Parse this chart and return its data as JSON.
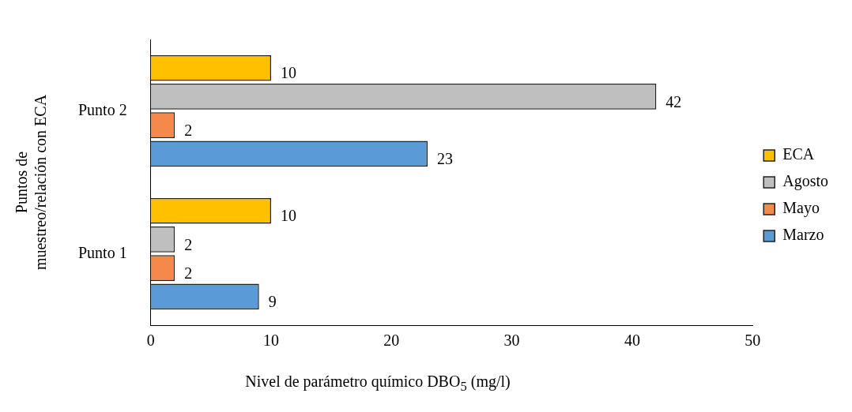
{
  "chart_data": {
    "type": "bar",
    "orientation": "horizontal",
    "xlabel": "Nivel de parámetro químico DBO$_{5}$ (mg/l)",
    "ylabel": "Puntos de muestreo/relación con ECA",
    "categories": [
      "Punto 2",
      "Punto 1"
    ],
    "series": [
      {
        "name": "ECA",
        "color": "#ffc000",
        "values": [
          10,
          10
        ]
      },
      {
        "name": "Agosto",
        "color": "#bfbfbf",
        "values": [
          42,
          2
        ]
      },
      {
        "name": "Mayo",
        "color": "#f4894b",
        "values": [
          2,
          2
        ]
      },
      {
        "name": "Marzo",
        "color": "#5b9bd5",
        "values": [
          23,
          9
        ]
      }
    ],
    "xlim": [
      0,
      50
    ],
    "xticks": [
      0,
      10,
      20,
      30,
      40,
      50
    ],
    "grid": false,
    "legend": "right",
    "data_labels": true
  }
}
